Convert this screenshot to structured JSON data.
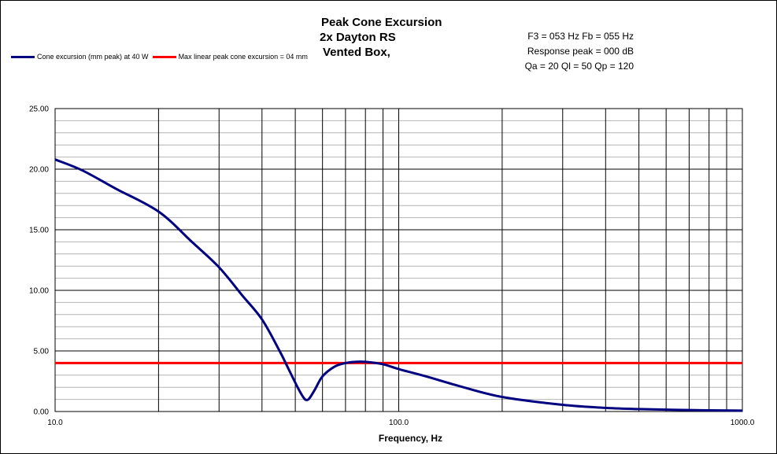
{
  "chart_data": {
    "type": "line",
    "title_lines": [
      "Peak Cone Excursion",
      "2x Dayton RS",
      "Vented Box, ",
      ""
    ],
    "xlabel": "Frequency, Hz",
    "ylabel": "",
    "x_scale": "log",
    "xlim": [
      10,
      1000
    ],
    "ylim": [
      0,
      25
    ],
    "x_tick_labels": [
      "10.0",
      "100.0",
      "1000.0"
    ],
    "y_tick_labels": [
      "0.00",
      "5.00",
      "10.00",
      "15.00",
      "20.00",
      "25.00"
    ],
    "grid": true,
    "legend_position": "top-left",
    "series": [
      {
        "name": "Cone excursion (mm peak) at 40 W",
        "color": "#000080",
        "x": [
          10,
          12,
          15,
          20,
          25,
          30,
          35,
          40,
          45,
          48,
          51,
          53,
          54,
          55,
          57,
          60,
          65,
          70,
          75,
          80,
          90,
          100,
          120,
          150,
          200,
          300,
          400,
          500,
          700,
          1000
        ],
        "y": [
          20.8,
          19.9,
          18.4,
          16.5,
          14.0,
          11.9,
          9.6,
          7.6,
          5.0,
          3.4,
          1.9,
          1.1,
          0.95,
          1.1,
          1.8,
          2.9,
          3.7,
          4.0,
          4.1,
          4.1,
          3.9,
          3.5,
          2.9,
          2.1,
          1.2,
          0.55,
          0.3,
          0.2,
          0.12,
          0.07
        ]
      },
      {
        "name": "Max linear peak cone excursion = 04 mm",
        "color": "#ff0000",
        "x": [
          10,
          1000
        ],
        "y": [
          4,
          4
        ]
      }
    ]
  },
  "params": {
    "line1": "F3 = 053 Hz  Fb = 055 Hz",
    "line2": "Response  peak = 000 dB",
    "line3": "Qa = 20  Ql = 50  Qp = 120"
  }
}
